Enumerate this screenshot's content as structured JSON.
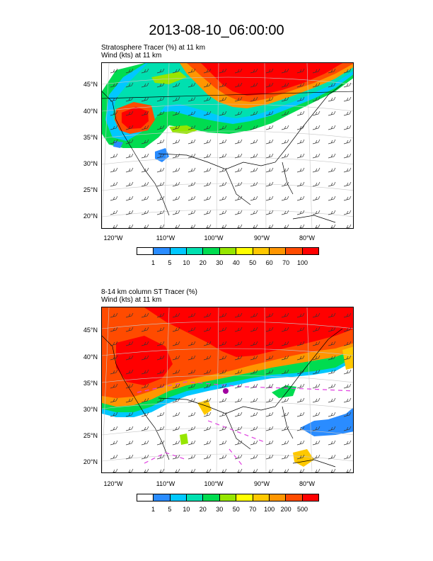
{
  "title": "2013-08-10_06:00:00",
  "panel1": {
    "line1": "Stratosphere Tracer   (%)     at   11 km",
    "line2": "Wind   (kts)      at   11 km",
    "lat_labels": [
      "45°N",
      "40°N",
      "35°N",
      "30°N",
      "25°N",
      "20°N"
    ],
    "lon_labels": [
      "120°W",
      "110°W",
      "100°W",
      "90°W",
      "80°W"
    ],
    "colorbar_labels": [
      "1",
      "5",
      "10",
      "20",
      "30",
      "40",
      "50",
      "60",
      "70",
      "100"
    ]
  },
  "panel2": {
    "line1": "8-14 km column ST Tracer   (%)",
    "line2": "Wind   (kts)      at   11 km",
    "lat_labels": [
      "45°N",
      "40°N",
      "35°N",
      "30°N",
      "25°N",
      "20°N"
    ],
    "lon_labels": [
      "120°W",
      "110°W",
      "100°W",
      "90°W",
      "80°W"
    ],
    "colorbar_labels": [
      "1",
      "5",
      "10",
      "20",
      "30",
      "50",
      "70",
      "100",
      "200",
      "500"
    ]
  },
  "colors": [
    "#ffffff",
    "#2a8cff",
    "#00c8ff",
    "#00e0b0",
    "#00dc50",
    "#96e600",
    "#ffff00",
    "#ffc800",
    "#ff9600",
    "#ff4b00",
    "#ff0000"
  ]
}
